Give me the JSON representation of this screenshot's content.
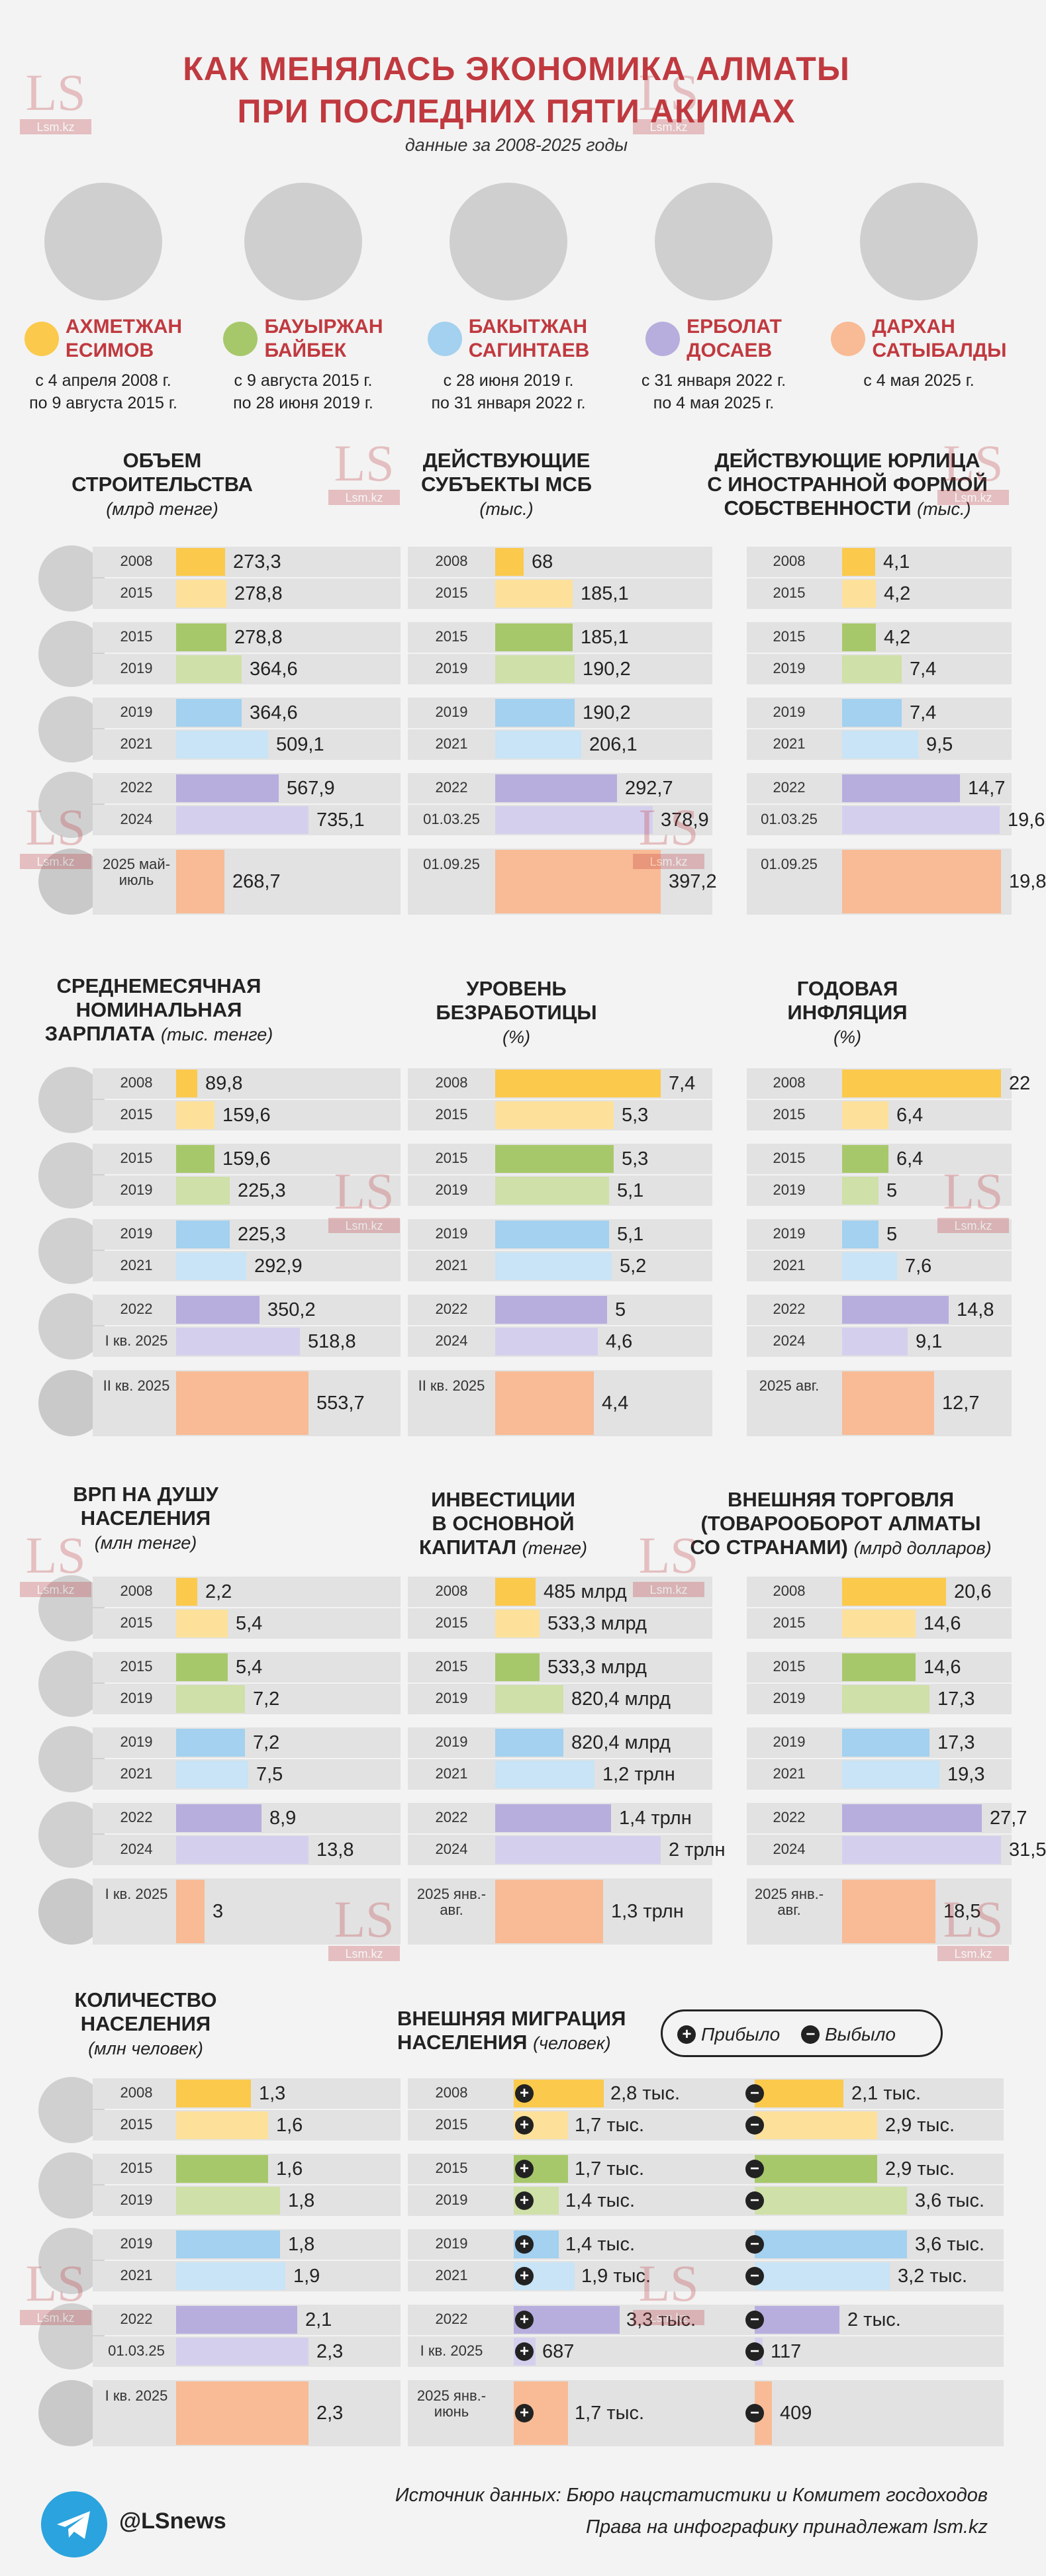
{
  "header": {
    "title_line1": "КАК МЕНЯЛАСЬ ЭКОНОМИКА АЛМАТЫ",
    "title_line2": "ПРИ ПОСЛЕДНИХ ПЯТИ АКИМАХ",
    "subtitle": "данные за 2008-2025 годы"
  },
  "watermark": {
    "big": "LS",
    "small": "Lsm.kz"
  },
  "colors": {
    "esimov": "#fbc94c",
    "baibek": "#a7c86a",
    "sagintaev": "#a3d1ef",
    "dosaev": "#b7aede",
    "satybaldy": "#f8bb95",
    "esimov_light": "#fde19b",
    "baibek_light": "#cfe0a8",
    "sagintaev_light": "#c8e4f6",
    "dosaev_light": "#d5cfee",
    "accent": "#c0393f"
  },
  "akims": [
    {
      "name1": "АХМЕТЖАН",
      "name2": "ЕСИМОВ",
      "term1": "с 4 апреля 2008 г.",
      "term2": "по 9 августа 2015 г."
    },
    {
      "name1": "БАУЫРЖАН",
      "name2": "БАЙБЕК",
      "term1": "с 9 августа 2015 г.",
      "term2": "по 28 июня 2019 г."
    },
    {
      "name1": "БАКЫТЖАН",
      "name2": "САГИНТАЕВ",
      "term1": "с 28 июня 2019 г.",
      "term2": "по 31 января 2022 г."
    },
    {
      "name1": "ЕРБОЛАТ",
      "name2": "ДОСАЕВ",
      "term1": "с 31 января 2022 г.",
      "term2": "по 4 мая 2025 г."
    },
    {
      "name1": "ДАРХАН",
      "name2": "САТЫБАЛДЫ",
      "term1": "с 4 мая 2025 г.",
      "term2": ""
    }
  ],
  "legend": {
    "plus": "+",
    "minus": "−",
    "arrived": "Прибыло",
    "left": "Выбыло"
  },
  "footer": {
    "source": "Источник данных: Бюро нацстатистики и Комитет госдоходов",
    "rights": "Права на инфографику принадлежат lsm.kz",
    "telegram": "@LSnews"
  },
  "chart_data": [
    {
      "type": "bar",
      "title": "ОБЪЕМ СТРОИТЕЛЬСТВА",
      "unit": "(млрд тенге)",
      "labels": [
        "2008",
        "2015",
        "2015",
        "2019",
        "2019",
        "2021",
        "2022",
        "2024",
        "2025 май-июль"
      ],
      "values": [
        273.3,
        278.8,
        278.8,
        364.6,
        364.6,
        509.1,
        567.9,
        735.1,
        268.7
      ],
      "value_labels": [
        "273,3",
        "278,8",
        "278,8",
        "364,6",
        "364,6",
        "509,1",
        "567,9",
        "735,1",
        "268,7"
      ]
    },
    {
      "type": "bar",
      "title": "ДЕЙСТВУЮЩИЕ СУБЪЕКТЫ МСБ",
      "unit": "(тыс.)",
      "labels": [
        "2008",
        "2015",
        "2015",
        "2019",
        "2019",
        "2021",
        "2022",
        "01.03.25",
        "01.09.25"
      ],
      "values": [
        68,
        185.1,
        185.1,
        190.2,
        190.2,
        206.1,
        292.7,
        378.9,
        397.2
      ],
      "value_labels": [
        "68",
        "185,1",
        "185,1",
        "190,2",
        "190,2",
        "206,1",
        "292,7",
        "378,9",
        "397,2"
      ]
    },
    {
      "type": "bar",
      "title": "ДЕЙСТВУЮЩИЕ ЮРЛИЦА С ИНОСТРАННОЙ ФОРМОЙ СОБСТВЕННОСТИ",
      "unit": "(тыс.)",
      "labels": [
        "2008",
        "2015",
        "2015",
        "2019",
        "2019",
        "2021",
        "2022",
        "01.03.25",
        "01.09.25"
      ],
      "values": [
        4.1,
        4.2,
        4.2,
        7.4,
        7.4,
        9.5,
        14.7,
        19.6,
        19.8
      ],
      "value_labels": [
        "4,1",
        "4,2",
        "4,2",
        "7,4",
        "7,4",
        "9,5",
        "14,7",
        "19,6",
        "19,8"
      ]
    },
    {
      "type": "bar",
      "title": "СРЕДНЕМЕСЯЧНАЯ НОМИНАЛЬНАЯ ЗАРПЛАТА",
      "unit": "(тыс. тенге)",
      "labels": [
        "2008",
        "2015",
        "2015",
        "2019",
        "2019",
        "2021",
        "2022",
        "I кв. 2025",
        "II кв. 2025"
      ],
      "values": [
        89.8,
        159.6,
        159.6,
        225.3,
        225.3,
        292.9,
        350.2,
        518.8,
        553.7
      ],
      "value_labels": [
        "89,8",
        "159,6",
        "159,6",
        "225,3",
        "225,3",
        "292,9",
        "350,2",
        "518,8",
        "553,7"
      ]
    },
    {
      "type": "bar",
      "title": "УРОВЕНЬ БЕЗРАБОТИЦЫ",
      "unit": "(%)",
      "labels": [
        "2008",
        "2015",
        "2015",
        "2019",
        "2019",
        "2021",
        "2022",
        "2024",
        "II кв. 2025"
      ],
      "values": [
        7.4,
        5.3,
        5.3,
        5.1,
        5.1,
        5.2,
        5,
        4.6,
        4.4
      ],
      "value_labels": [
        "7,4",
        "5,3",
        "5,3",
        "5,1",
        "5,1",
        "5,2",
        "5",
        "4,6",
        "4,4"
      ]
    },
    {
      "type": "bar",
      "title": "ГОДОВАЯ ИНФЛЯЦИЯ",
      "unit": "(%)",
      "labels": [
        "2008",
        "2015",
        "2015",
        "2019",
        "2019",
        "2021",
        "2022",
        "2024",
        "2025 авг."
      ],
      "values": [
        22,
        6.4,
        6.4,
        5,
        5,
        7.6,
        14.8,
        9.1,
        12.7
      ],
      "value_labels": [
        "22",
        "6,4",
        "6,4",
        "5",
        "5",
        "7,6",
        "14,8",
        "9,1",
        "12,7"
      ]
    },
    {
      "type": "bar",
      "title": "ВРП НА ДУШУ НАСЕЛЕНИЯ",
      "unit": "(млн тенге)",
      "labels": [
        "2008",
        "2015",
        "2015",
        "2019",
        "2019",
        "2021",
        "2022",
        "2024",
        "I кв. 2025"
      ],
      "values": [
        2.2,
        5.4,
        5.4,
        7.2,
        7.2,
        7.5,
        8.9,
        13.8,
        3
      ],
      "value_labels": [
        "2,2",
        "5,4",
        "5,4",
        "7,2",
        "7,2",
        "7,5",
        "8,9",
        "13,8",
        "3"
      ]
    },
    {
      "type": "bar",
      "title": "ИНВЕСТИЦИИ В ОСНОВНОЙ КАПИТАЛ",
      "unit": "(тенге)",
      "labels": [
        "2008",
        "2015",
        "2015",
        "2019",
        "2019",
        "2021",
        "2022",
        "2024",
        "2025 янв.-авг."
      ],
      "values": [
        485,
        533.3,
        533.3,
        820.4,
        820.4,
        1200,
        1400,
        2000,
        1300
      ],
      "value_labels": [
        "485 млрд",
        "533,3 млрд",
        "533,3 млрд",
        "820,4 млрд",
        "820,4 млрд",
        "1,2 трлн",
        "1,4 трлн",
        "2 трлн",
        "1,3 трлн"
      ]
    },
    {
      "type": "bar",
      "title": "ВНЕШНЯЯ ТОРГОВЛЯ (ТОВАРООБОРОТ АЛМАТЫ СО СТРАНАМИ)",
      "unit": "(млрд долларов)",
      "labels": [
        "2008",
        "2015",
        "2015",
        "2019",
        "2019",
        "2021",
        "2022",
        "2024",
        "2025 янв.-авг."
      ],
      "values": [
        20.6,
        14.6,
        14.6,
        17.3,
        17.3,
        19.3,
        27.7,
        31.5,
        18.5
      ],
      "value_labels": [
        "20,6",
        "14,6",
        "14,6",
        "17,3",
        "17,3",
        "19,3",
        "27,7",
        "31,5",
        "18,5"
      ]
    },
    {
      "type": "bar",
      "title": "КОЛИЧЕСТВО НАСЕЛЕНИЯ",
      "unit": "(млн человек)",
      "labels": [
        "2008",
        "2015",
        "2015",
        "2019",
        "2019",
        "2021",
        "2022",
        "01.03.25",
        "I кв. 2025"
      ],
      "values": [
        1.3,
        1.6,
        1.6,
        1.8,
        1.8,
        1.9,
        2.1,
        2.3,
        2.3
      ],
      "value_labels": [
        "1,3",
        "1,6",
        "1,6",
        "1,8",
        "1,8",
        "1,9",
        "2,1",
        "2,3",
        "2,3"
      ]
    },
    {
      "type": "bar",
      "title": "ВНЕШНЯЯ МИГРАЦИЯ НАСЕЛЕНИЯ",
      "unit": "(человек)",
      "labels": [
        "2008",
        "2015",
        "2015",
        "2019",
        "2019",
        "2021",
        "2022",
        "I кв. 2025",
        "2025 янв.-июнь"
      ],
      "series": [
        {
          "name": "Прибыло",
          "values": [
            2800,
            1700,
            1700,
            1400,
            1400,
            1900,
            3300,
            687,
            1700
          ],
          "value_labels": [
            "2,8 тыс.",
            "1,7 тыс.",
            "1,7 тыс.",
            "1,4 тыс.",
            "1,4 тыс.",
            "1,9 тыс.",
            "3,3 тыс.",
            "687",
            "1,7 тыс."
          ]
        },
        {
          "name": "Выбыло",
          "values": [
            2100,
            2900,
            2900,
            3600,
            3600,
            3200,
            2000,
            117,
            409
          ],
          "value_labels": [
            "2,1 тыс.",
            "2,9 тыс.",
            "2,9 тыс.",
            "3,6 тыс.",
            "3,6 тыс.",
            "3,2 тыс.",
            "2 тыс.",
            "117",
            "409"
          ]
        }
      ]
    }
  ]
}
